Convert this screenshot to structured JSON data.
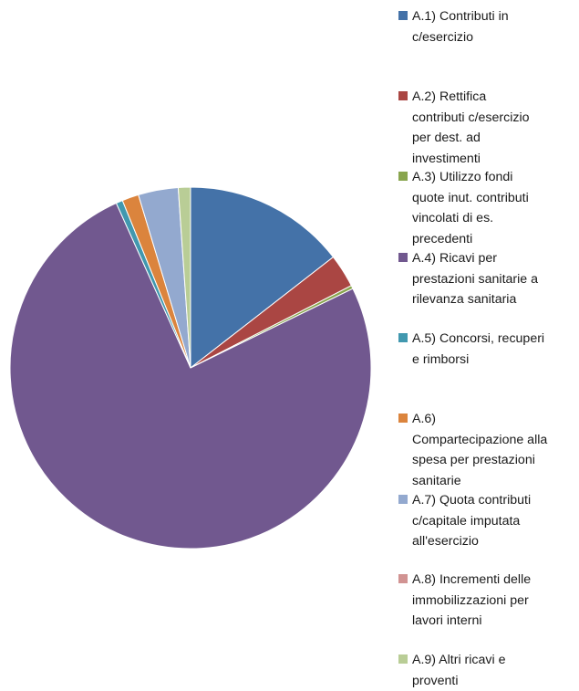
{
  "chart_data": {
    "type": "pie",
    "title": "",
    "start_angle_deg": 0,
    "direction": "clockwise",
    "legend_position": "right",
    "series": [
      {
        "name": "A.1)  Contributi in\nc/esercizio",
        "value": 14.6,
        "color": "#4472A8"
      },
      {
        "name": "A.2)  Rettifica\ncontributi c/esercizio\nper dest. ad\ninvestimenti",
        "value": 3.0,
        "color": "#AA4643"
      },
      {
        "name": "A.3) Utilizzo fondi\nquote inut. contributi\nvincolati di es.\nprecedenti",
        "value": 0.3,
        "color": "#89A54E"
      },
      {
        "name": "A.4)  Ricavi per\nprestazioni sanitarie a\nrilevanza sanitaria",
        "value": 76.0,
        "color": "#71588F"
      },
      {
        "name": "A.5) Concorsi, recuperi\ne rimborsi",
        "value": 0.6,
        "color": "#4198AF"
      },
      {
        "name": "A.6)\nCompartecipazione alla\nspesa per prestazioni\nsanitarie",
        "value": 1.5,
        "color": "#DB843D"
      },
      {
        "name": "A.7)  Quota contributi\nc/capitale imputata\nall'esercizio",
        "value": 3.6,
        "color": "#93A9CF"
      },
      {
        "name": "A.8)  Incrementi delle\nimmobilizzazioni per\nlavori interni",
        "value": 0.0,
        "color": "#D19392"
      },
      {
        "name": "A.9) Altri ricavi e\nproventi",
        "value": 1.1,
        "color": "#B9CD96"
      }
    ]
  }
}
